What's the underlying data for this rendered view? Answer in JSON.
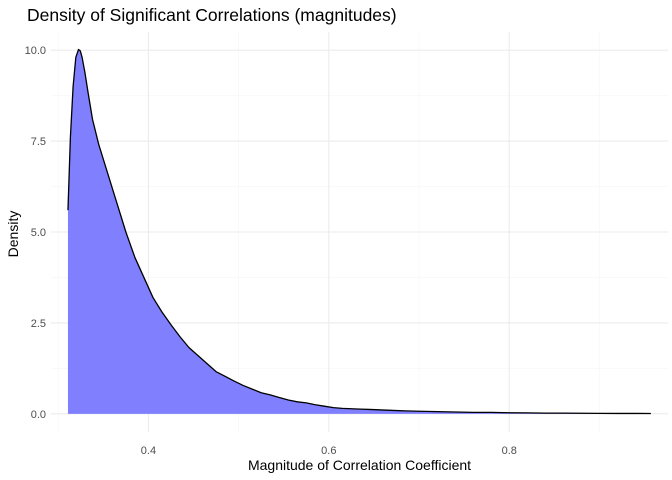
{
  "chart_data": {
    "type": "area",
    "title": "Density of Significant Correlations (magnitudes)",
    "xlabel": "Magnitude of Correlation Coefficient",
    "ylabel": "Density",
    "xlim": [
      0.292,
      0.976
    ],
    "ylim": [
      -0.5,
      10.5
    ],
    "xticks": [
      0.4,
      0.6,
      0.8
    ],
    "xtick_labels": [
      "0.4",
      "0.6",
      "0.8"
    ],
    "yticks": [
      0,
      2.5,
      5,
      7.5,
      10
    ],
    "ytick_labels": [
      "0.0",
      "2.5",
      "5.0",
      "7.5",
      "10.0"
    ],
    "grid": true,
    "fill_color": "#8080ff",
    "line_color": "#000000",
    "series": [
      {
        "x": [
          0.3108,
          0.3135,
          0.3165,
          0.3195,
          0.3225,
          0.3245,
          0.3265,
          0.3295,
          0.333,
          0.338,
          0.345,
          0.355,
          0.365,
          0.375,
          0.385,
          0.395,
          0.405,
          0.415,
          0.425,
          0.435,
          0.445,
          0.455,
          0.465,
          0.475,
          0.485,
          0.495,
          0.505,
          0.515,
          0.525,
          0.535,
          0.545,
          0.555,
          0.565,
          0.575,
          0.585,
          0.595,
          0.605,
          0.615,
          0.625,
          0.635,
          0.645,
          0.655,
          0.665,
          0.675,
          0.685,
          0.7,
          0.72,
          0.74,
          0.76,
          0.78,
          0.8,
          0.82,
          0.84,
          0.86,
          0.88,
          0.9,
          0.92,
          0.94,
          0.957
        ],
        "y": [
          5.6,
          7.6,
          9.0,
          9.8,
          10.02,
          9.98,
          9.8,
          9.4,
          8.85,
          8.1,
          7.4,
          6.6,
          5.8,
          5.0,
          4.3,
          3.75,
          3.2,
          2.8,
          2.45,
          2.12,
          1.82,
          1.6,
          1.38,
          1.16,
          1.03,
          0.9,
          0.78,
          0.68,
          0.58,
          0.52,
          0.45,
          0.38,
          0.33,
          0.3,
          0.25,
          0.21,
          0.17,
          0.15,
          0.14,
          0.13,
          0.12,
          0.11,
          0.1,
          0.09,
          0.08,
          0.07,
          0.06,
          0.05,
          0.04,
          0.04,
          0.03,
          0.025,
          0.02,
          0.02,
          0.015,
          0.012,
          0.01,
          0.01,
          0.008
        ]
      }
    ]
  }
}
